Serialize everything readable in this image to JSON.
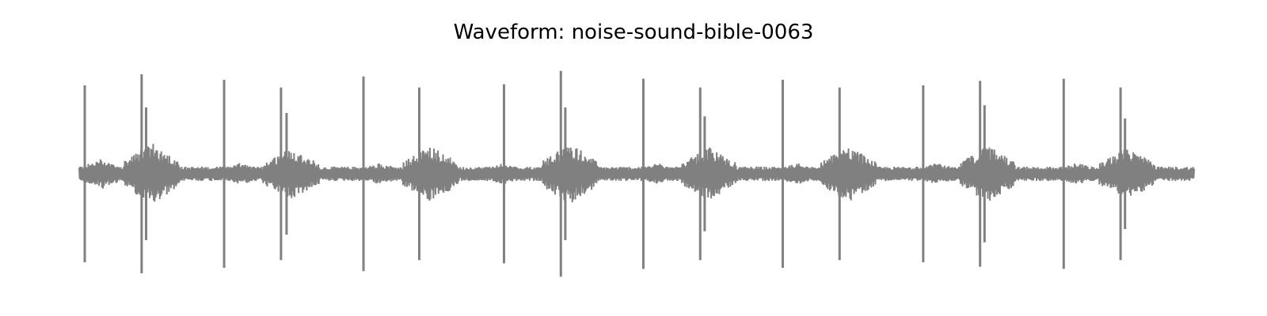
{
  "chart_data": {
    "type": "line",
    "title": "Waveform: noise-sound-bible-0063",
    "xlabel": "",
    "ylabel": "",
    "axes_visible": false,
    "grid": false,
    "legend": "none",
    "color": "#808080",
    "ylim": [
      -1.0,
      1.0
    ],
    "xlim": [
      0.0,
      1.0
    ],
    "spikes": [
      {
        "x": 0.005,
        "max": 0.8,
        "min": -0.8
      },
      {
        "x": 0.056,
        "max": 0.9,
        "min": -0.9
      },
      {
        "x": 0.06,
        "max": 0.6,
        "min": -0.6
      },
      {
        "x": 0.13,
        "max": 0.85,
        "min": -0.85
      },
      {
        "x": 0.181,
        "max": 0.78,
        "min": -0.78
      },
      {
        "x": 0.186,
        "max": 0.55,
        "min": -0.55
      },
      {
        "x": 0.255,
        "max": 0.88,
        "min": -0.88
      },
      {
        "x": 0.305,
        "max": 0.78,
        "min": -0.78
      },
      {
        "x": 0.381,
        "max": 0.81,
        "min": -0.81
      },
      {
        "x": 0.432,
        "max": 0.93,
        "min": -0.93
      },
      {
        "x": 0.436,
        "max": 0.6,
        "min": -0.6
      },
      {
        "x": 0.506,
        "max": 0.86,
        "min": -0.86
      },
      {
        "x": 0.557,
        "max": 0.78,
        "min": -0.78
      },
      {
        "x": 0.561,
        "max": 0.52,
        "min": -0.52
      },
      {
        "x": 0.631,
        "max": 0.85,
        "min": -0.85
      },
      {
        "x": 0.682,
        "max": 0.78,
        "min": -0.78
      },
      {
        "x": 0.757,
        "max": 0.8,
        "min": -0.8
      },
      {
        "x": 0.808,
        "max": 0.84,
        "min": -0.84
      },
      {
        "x": 0.812,
        "max": 0.62,
        "min": -0.62
      },
      {
        "x": 0.883,
        "max": 0.86,
        "min": -0.86
      },
      {
        "x": 0.934,
        "max": 0.78,
        "min": -0.78
      },
      {
        "x": 0.938,
        "max": 0.5,
        "min": -0.5
      }
    ],
    "bursts": [
      {
        "x": 0.02,
        "width": 0.02,
        "amp": 0.14
      },
      {
        "x": 0.065,
        "width": 0.025,
        "amp": 0.28
      },
      {
        "x": 0.145,
        "width": 0.02,
        "amp": 0.1
      },
      {
        "x": 0.19,
        "width": 0.025,
        "amp": 0.24
      },
      {
        "x": 0.27,
        "width": 0.02,
        "amp": 0.1
      },
      {
        "x": 0.315,
        "width": 0.025,
        "amp": 0.26
      },
      {
        "x": 0.38,
        "width": 0.02,
        "amp": 0.1
      },
      {
        "x": 0.44,
        "width": 0.025,
        "amp": 0.28
      },
      {
        "x": 0.52,
        "width": 0.02,
        "amp": 0.1
      },
      {
        "x": 0.565,
        "width": 0.025,
        "amp": 0.24
      },
      {
        "x": 0.645,
        "width": 0.02,
        "amp": 0.1
      },
      {
        "x": 0.69,
        "width": 0.025,
        "amp": 0.26
      },
      {
        "x": 0.77,
        "width": 0.02,
        "amp": 0.1
      },
      {
        "x": 0.815,
        "width": 0.025,
        "amp": 0.26
      },
      {
        "x": 0.895,
        "width": 0.02,
        "amp": 0.1
      },
      {
        "x": 0.94,
        "width": 0.025,
        "amp": 0.24
      }
    ],
    "noise_floor": 0.05
  }
}
